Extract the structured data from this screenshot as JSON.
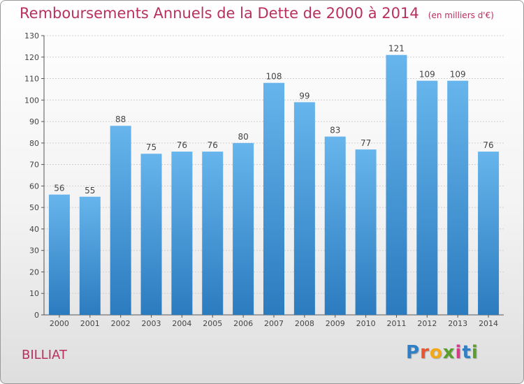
{
  "header": {
    "title": "Remboursements Annuels de la Dette de 2000 à 2014",
    "unit": "(en milliers d'€)"
  },
  "footer": {
    "city": "BILLIAT",
    "logo": "Proxiti"
  },
  "colors": {
    "title": "#b8305e",
    "bar_top": "#67b5ec",
    "bar_bottom": "#2b7bbf",
    "axis": "#555555",
    "grid": "#d0d0d0"
  },
  "chart_data": {
    "type": "bar",
    "title": "Remboursements Annuels de la Dette de 2000 à 2014",
    "xlabel": "",
    "ylabel": "",
    "categories": [
      "2000",
      "2001",
      "2002",
      "2003",
      "2004",
      "2005",
      "2006",
      "2007",
      "2008",
      "2009",
      "2010",
      "2011",
      "2012",
      "2013",
      "2014"
    ],
    "values": [
      56,
      55,
      88,
      75,
      76,
      76,
      80,
      108,
      99,
      83,
      77,
      121,
      109,
      109,
      76
    ],
    "ylim": [
      0,
      130
    ],
    "yticks": [
      0,
      10,
      20,
      30,
      40,
      50,
      60,
      70,
      80,
      90,
      100,
      110,
      120,
      130
    ],
    "grid": true,
    "data_labels": true
  }
}
